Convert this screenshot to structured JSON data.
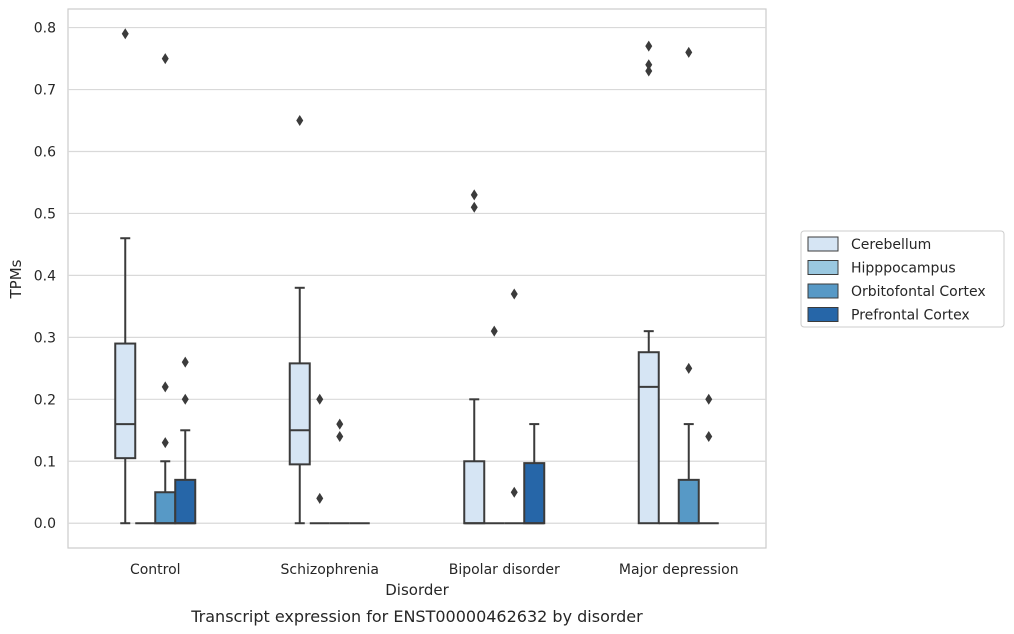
{
  "chart_data": {
    "type": "box",
    "caption": "Transcript expression for ENST00000462632 by disorder",
    "xlabel": "Disorder",
    "ylabel": "TPMs",
    "ylim": [
      -0.04,
      0.83
    ],
    "yticks": [
      0.0,
      0.1,
      0.2,
      0.3,
      0.4,
      0.5,
      0.6,
      0.7,
      0.8
    ],
    "ytick_labels": [
      "0.0",
      "0.1",
      "0.2",
      "0.3",
      "0.4",
      "0.5",
      "0.6",
      "0.7",
      "0.8"
    ],
    "grid": "horizontal",
    "legend_position": "right",
    "categories": [
      "Control",
      "Schizophrenia",
      "Bipolar disorder",
      "Major depression"
    ],
    "series": [
      {
        "name": "Cerebellum",
        "color": "#d6e5f4",
        "boxes": [
          {
            "whisker_low": 0.0,
            "q1": 0.105,
            "median": 0.16,
            "q3": 0.29,
            "whisker_high": 0.46,
            "outliers": [
              0.79
            ]
          },
          {
            "whisker_low": 0.0,
            "q1": 0.095,
            "median": 0.15,
            "q3": 0.258,
            "whisker_high": 0.38,
            "outliers": [
              0.65
            ]
          },
          {
            "whisker_low": 0.0,
            "q1": 0.0,
            "median": 0.0,
            "q3": 0.1,
            "whisker_high": 0.2,
            "outliers": [
              0.51,
              0.53
            ]
          },
          {
            "whisker_low": 0.0,
            "q1": 0.0,
            "median": 0.22,
            "q3": 0.276,
            "whisker_high": 0.31,
            "outliers": [
              0.73,
              0.74,
              0.77
            ]
          }
        ]
      },
      {
        "name": "Hipppocampus",
        "color": "#9ac8e0",
        "boxes": [
          {
            "whisker_low": 0.0,
            "q1": 0.0,
            "median": 0.0,
            "q3": 0.0,
            "whisker_high": 0.0,
            "outliers": []
          },
          {
            "whisker_low": 0.0,
            "q1": 0.0,
            "median": 0.0,
            "q3": 0.0,
            "whisker_high": 0.0,
            "outliers": [
              0.04,
              0.2
            ]
          },
          {
            "whisker_low": 0.0,
            "q1": 0.0,
            "median": 0.0,
            "q3": 0.0,
            "whisker_high": 0.0,
            "outliers": [
              0.31
            ]
          },
          {
            "whisker_low": 0.0,
            "q1": 0.0,
            "median": 0.0,
            "q3": 0.0,
            "whisker_high": 0.0,
            "outliers": []
          }
        ]
      },
      {
        "name": "Orbitofontal Cortex",
        "color": "#5799c6",
        "boxes": [
          {
            "whisker_low": 0.0,
            "q1": 0.0,
            "median": 0.0,
            "q3": 0.05,
            "whisker_high": 0.1,
            "outliers": [
              0.13,
              0.22,
              0.75
            ]
          },
          {
            "whisker_low": 0.0,
            "q1": 0.0,
            "median": 0.0,
            "q3": 0.0,
            "whisker_high": 0.0,
            "outliers": [
              0.14,
              0.16
            ]
          },
          {
            "whisker_low": 0.0,
            "q1": 0.0,
            "median": 0.0,
            "q3": 0.0,
            "whisker_high": 0.0,
            "outliers": [
              0.05,
              0.37
            ]
          },
          {
            "whisker_low": 0.0,
            "q1": 0.0,
            "median": 0.0,
            "q3": 0.07,
            "whisker_high": 0.16,
            "outliers": [
              0.25,
              0.76
            ]
          }
        ]
      },
      {
        "name": "Prefrontal Cortex",
        "color": "#2666a8",
        "boxes": [
          {
            "whisker_low": 0.0,
            "q1": 0.0,
            "median": 0.0,
            "q3": 0.07,
            "whisker_high": 0.15,
            "outliers": [
              0.2,
              0.26
            ]
          },
          {
            "whisker_low": 0.0,
            "q1": 0.0,
            "median": 0.0,
            "q3": 0.0,
            "whisker_high": 0.0,
            "outliers": []
          },
          {
            "whisker_low": 0.0,
            "q1": 0.0,
            "median": 0.0,
            "q3": 0.097,
            "whisker_high": 0.16,
            "outliers": []
          },
          {
            "whisker_low": 0.0,
            "q1": 0.0,
            "median": 0.0,
            "q3": 0.0,
            "whisker_high": 0.0,
            "outliers": [
              0.14,
              0.2
            ]
          }
        ]
      }
    ]
  }
}
